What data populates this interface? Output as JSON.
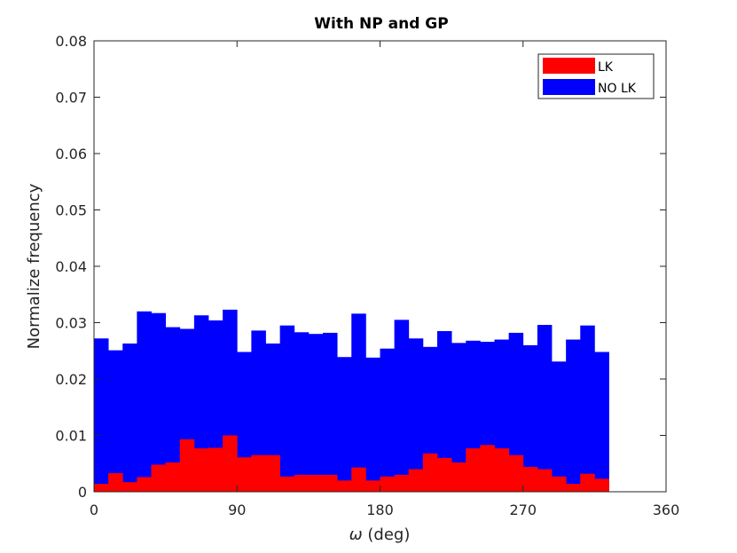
{
  "chart_data": {
    "type": "bar",
    "title": "With NP and GP",
    "xlabel_symbol": "ω",
    "xlabel_unit": " (deg)",
    "ylabel": "Normalize frequency",
    "xlim": [
      0,
      360
    ],
    "ylim": [
      0,
      0.08
    ],
    "xticks": [
      0,
      90,
      180,
      270,
      360
    ],
    "yticks": [
      0,
      0.01,
      0.02,
      0.03,
      0.04,
      0.05,
      0.06,
      0.07,
      0.08
    ],
    "ytick_labels": [
      "0",
      "0.01",
      "0.02",
      "0.03",
      "0.04",
      "0.05",
      "0.06",
      "0.07",
      "0.08"
    ],
    "bin_width": 9,
    "grid": false,
    "legend_position": "top-right",
    "series": [
      {
        "name": "NO LK",
        "color": "#0000ff",
        "values": [
          0.0272,
          0.0251,
          0.0263,
          0.032,
          0.0317,
          0.0292,
          0.0289,
          0.0313,
          0.0304,
          0.0323,
          0.0248,
          0.0286,
          0.0263,
          0.0295,
          0.0283,
          0.028,
          0.0282,
          0.0239,
          0.0316,
          0.0238,
          0.0254,
          0.0305,
          0.0272,
          0.0257,
          0.0285,
          0.0264,
          0.0268,
          0.0266,
          0.027,
          0.0282,
          0.026,
          0.0296,
          0.0231,
          0.027,
          0.0295,
          0.0248
        ]
      },
      {
        "name": "LK",
        "color": "#ff0000",
        "values": [
          0.0014,
          0.0033,
          0.0017,
          0.0026,
          0.0048,
          0.0052,
          0.0093,
          0.0077,
          0.0078,
          0.01,
          0.0061,
          0.0065,
          0.0065,
          0.0027,
          0.003,
          0.003,
          0.003,
          0.002,
          0.0043,
          0.002,
          0.0027,
          0.003,
          0.004,
          0.0068,
          0.006,
          0.0052,
          0.0077,
          0.0083,
          0.0077,
          0.0065,
          0.0044,
          0.004,
          0.0027,
          0.0014,
          0.0032,
          0.0023
        ]
      }
    ]
  }
}
